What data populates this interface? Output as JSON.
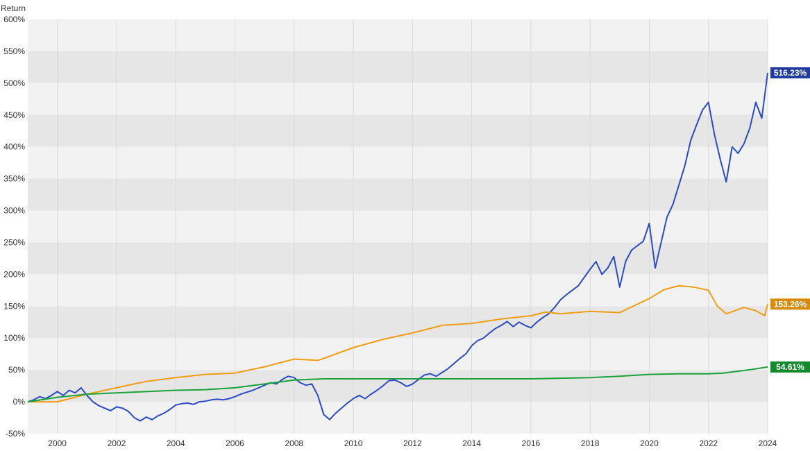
{
  "chart_data": {
    "type": "line",
    "title": "",
    "xlabel": "",
    "ylabel": "Return",
    "xlim": [
      1999.0,
      2024.0
    ],
    "ylim": [
      -50,
      600
    ],
    "x_ticks": [
      "2000",
      "2002",
      "2004",
      "2006",
      "2008",
      "2010",
      "2012",
      "2014",
      "2016",
      "2018",
      "2020",
      "2022",
      "2024"
    ],
    "y_ticks": [
      "-50%",
      "0%",
      "50%",
      "100%",
      "150%",
      "200%",
      "250%",
      "300%",
      "350%",
      "400%",
      "450%",
      "500%",
      "550%",
      "600%"
    ],
    "grid": true,
    "legend": "none",
    "series": [
      {
        "color": "#2a4bc8",
        "end_label": "516.23%",
        "end_label_color": "#1f3c9e",
        "points": [
          [
            1999.0,
            0
          ],
          [
            1999.2,
            3
          ],
          [
            1999.4,
            8
          ],
          [
            1999.6,
            5
          ],
          [
            1999.8,
            10
          ],
          [
            2000.0,
            16
          ],
          [
            2000.2,
            10
          ],
          [
            2000.4,
            18
          ],
          [
            2000.6,
            14
          ],
          [
            2000.8,
            22
          ],
          [
            2001.0,
            10
          ],
          [
            2001.2,
            0
          ],
          [
            2001.4,
            -6
          ],
          [
            2001.6,
            -10
          ],
          [
            2001.8,
            -14
          ],
          [
            2002.0,
            -8
          ],
          [
            2002.2,
            -10
          ],
          [
            2002.4,
            -15
          ],
          [
            2002.6,
            -25
          ],
          [
            2002.8,
            -30
          ],
          [
            2003.0,
            -24
          ],
          [
            2003.2,
            -28
          ],
          [
            2003.4,
            -22
          ],
          [
            2003.6,
            -18
          ],
          [
            2003.8,
            -12
          ],
          [
            2004.0,
            -5
          ],
          [
            2004.2,
            -3
          ],
          [
            2004.4,
            -2
          ],
          [
            2004.6,
            -4
          ],
          [
            2004.8,
            0
          ],
          [
            2005.0,
            1
          ],
          [
            2005.2,
            3
          ],
          [
            2005.4,
            4
          ],
          [
            2005.6,
            3
          ],
          [
            2005.8,
            5
          ],
          [
            2006.0,
            8
          ],
          [
            2006.2,
            12
          ],
          [
            2006.4,
            15
          ],
          [
            2006.6,
            18
          ],
          [
            2006.8,
            22
          ],
          [
            2007.0,
            26
          ],
          [
            2007.2,
            30
          ],
          [
            2007.4,
            28
          ],
          [
            2007.6,
            35
          ],
          [
            2007.8,
            40
          ],
          [
            2008.0,
            38
          ],
          [
            2008.2,
            30
          ],
          [
            2008.4,
            26
          ],
          [
            2008.6,
            28
          ],
          [
            2008.8,
            10
          ],
          [
            2009.0,
            -20
          ],
          [
            2009.2,
            -28
          ],
          [
            2009.4,
            -18
          ],
          [
            2009.6,
            -10
          ],
          [
            2009.8,
            -2
          ],
          [
            2010.0,
            5
          ],
          [
            2010.2,
            10
          ],
          [
            2010.4,
            5
          ],
          [
            2010.6,
            12
          ],
          [
            2010.8,
            18
          ],
          [
            2011.0,
            25
          ],
          [
            2011.2,
            33
          ],
          [
            2011.4,
            34
          ],
          [
            2011.6,
            30
          ],
          [
            2011.8,
            24
          ],
          [
            2012.0,
            28
          ],
          [
            2012.2,
            35
          ],
          [
            2012.4,
            42
          ],
          [
            2012.6,
            44
          ],
          [
            2012.8,
            40
          ],
          [
            2013.0,
            46
          ],
          [
            2013.2,
            52
          ],
          [
            2013.4,
            60
          ],
          [
            2013.6,
            68
          ],
          [
            2013.8,
            75
          ],
          [
            2014.0,
            88
          ],
          [
            2014.2,
            96
          ],
          [
            2014.4,
            100
          ],
          [
            2014.6,
            108
          ],
          [
            2014.8,
            115
          ],
          [
            2015.0,
            120
          ],
          [
            2015.2,
            126
          ],
          [
            2015.4,
            118
          ],
          [
            2015.6,
            125
          ],
          [
            2015.8,
            120
          ],
          [
            2016.0,
            116
          ],
          [
            2016.2,
            125
          ],
          [
            2016.4,
            132
          ],
          [
            2016.6,
            138
          ],
          [
            2016.8,
            148
          ],
          [
            2017.0,
            160
          ],
          [
            2017.2,
            168
          ],
          [
            2017.4,
            175
          ],
          [
            2017.6,
            182
          ],
          [
            2017.8,
            195
          ],
          [
            2018.0,
            208
          ],
          [
            2018.2,
            220
          ],
          [
            2018.4,
            200
          ],
          [
            2018.6,
            210
          ],
          [
            2018.8,
            228
          ],
          [
            2019.0,
            180
          ],
          [
            2019.2,
            220
          ],
          [
            2019.4,
            238
          ],
          [
            2019.6,
            245
          ],
          [
            2019.8,
            252
          ],
          [
            2020.0,
            280
          ],
          [
            2020.2,
            210
          ],
          [
            2020.4,
            250
          ],
          [
            2020.6,
            290
          ],
          [
            2020.8,
            310
          ],
          [
            2021.0,
            340
          ],
          [
            2021.2,
            370
          ],
          [
            2021.4,
            410
          ],
          [
            2021.6,
            435
          ],
          [
            2021.8,
            458
          ],
          [
            2022.0,
            470
          ],
          [
            2022.2,
            420
          ],
          [
            2022.4,
            380
          ],
          [
            2022.6,
            345
          ],
          [
            2022.8,
            400
          ],
          [
            2023.0,
            390
          ],
          [
            2023.2,
            405
          ],
          [
            2023.4,
            430
          ],
          [
            2023.6,
            470
          ],
          [
            2023.8,
            445
          ],
          [
            2024.0,
            516.23
          ]
        ]
      },
      {
        "color": "#f39c12",
        "end_label": "153.26%",
        "end_label_color": "#d88a0c",
        "points": [
          [
            1999.0,
            0
          ],
          [
            2000.0,
            0
          ],
          [
            2001.0,
            12
          ],
          [
            2002.0,
            22
          ],
          [
            2003.0,
            32
          ],
          [
            2004.0,
            38
          ],
          [
            2005.0,
            43
          ],
          [
            2006.0,
            45
          ],
          [
            2007.0,
            55
          ],
          [
            2008.0,
            67
          ],
          [
            2008.8,
            65
          ],
          [
            2009.0,
            68
          ],
          [
            2010.0,
            85
          ],
          [
            2011.0,
            98
          ],
          [
            2012.0,
            108
          ],
          [
            2013.0,
            120
          ],
          [
            2014.0,
            123
          ],
          [
            2015.0,
            130
          ],
          [
            2016.0,
            135
          ],
          [
            2016.5,
            141
          ],
          [
            2017.0,
            138
          ],
          [
            2018.0,
            142
          ],
          [
            2019.0,
            140
          ],
          [
            2020.0,
            162
          ],
          [
            2020.5,
            176
          ],
          [
            2021.0,
            182
          ],
          [
            2021.5,
            180
          ],
          [
            2022.0,
            175
          ],
          [
            2022.3,
            150
          ],
          [
            2022.6,
            138
          ],
          [
            2022.9,
            143
          ],
          [
            2023.2,
            148
          ],
          [
            2023.6,
            143
          ],
          [
            2023.9,
            135
          ],
          [
            2024.0,
            153.26
          ]
        ]
      },
      {
        "color": "#19a13a",
        "end_label": "54.61%",
        "end_label_color": "#138a2e",
        "points": [
          [
            1999.0,
            0
          ],
          [
            2000.0,
            7
          ],
          [
            2001.0,
            12
          ],
          [
            2002.0,
            14
          ],
          [
            2003.0,
            16
          ],
          [
            2004.0,
            18
          ],
          [
            2005.0,
            19
          ],
          [
            2006.0,
            22
          ],
          [
            2007.0,
            28
          ],
          [
            2008.0,
            34
          ],
          [
            2009.0,
            36
          ],
          [
            2010.0,
            36
          ],
          [
            2011.0,
            36
          ],
          [
            2012.0,
            36
          ],
          [
            2013.0,
            36
          ],
          [
            2014.0,
            36
          ],
          [
            2015.0,
            36
          ],
          [
            2016.0,
            36
          ],
          [
            2017.0,
            37
          ],
          [
            2018.0,
            38
          ],
          [
            2019.0,
            40
          ],
          [
            2020.0,
            43
          ],
          [
            2021.0,
            44
          ],
          [
            2022.0,
            44
          ],
          [
            2022.5,
            45
          ],
          [
            2023.0,
            48
          ],
          [
            2023.5,
            51
          ],
          [
            2024.0,
            54.61
          ]
        ]
      }
    ]
  }
}
